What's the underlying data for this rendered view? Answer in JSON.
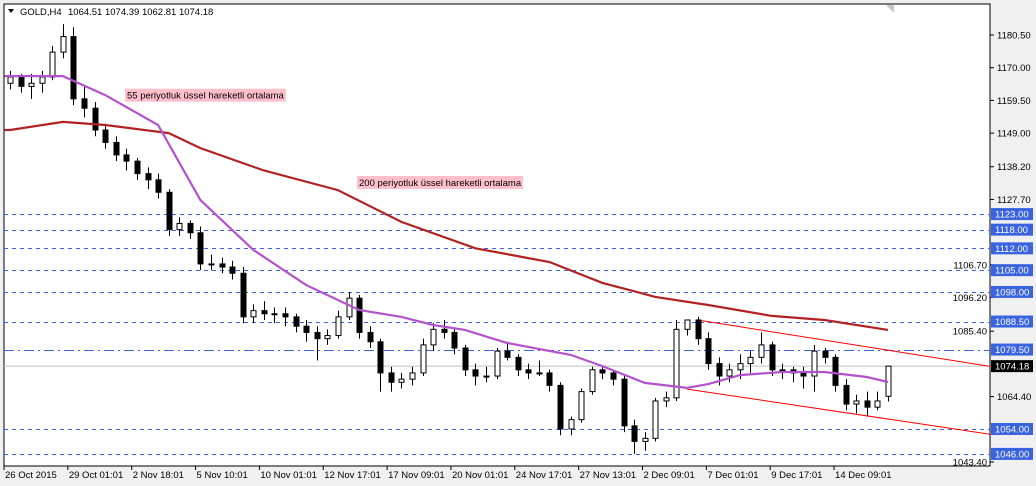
{
  "header": {
    "symbol": "GOLD,H4",
    "ohlc": "1064.51 1074.39 1062.81 1074.18",
    "menu_icon": "triangle-down-icon"
  },
  "colors": {
    "bull_bear": "#000000",
    "ma55": "#b452cd",
    "ma200": "#b22222",
    "levels": "#3a63e0",
    "channel": "#ff0000",
    "price_line": "#c0c0c0",
    "label_bg": "#ffc0cb"
  },
  "annotations": [
    {
      "text": "55 periyotluk üssel hareketli ortalama",
      "anchor_price": 1161
    },
    {
      "text": "200 periyotluk üssel hareketli ortalama",
      "anchor_price": 1133
    }
  ],
  "chart_data": {
    "type": "candlestick",
    "title": "GOLD,H4",
    "ylim": [
      1043.4,
      1180.5
    ],
    "y_ticks": [
      "1180.50",
      "1170.00",
      "1159.50",
      "1149.00",
      "1138.20",
      "1127.70",
      "1106.70",
      "1096.20",
      "1085.40",
      "1064.40",
      "1043.40"
    ],
    "x_ticks": [
      "26 Oct 2015",
      "29 Oct 01:01",
      "2 Nov 18:01",
      "5 Nov 10:01",
      "10 Nov 01:01",
      "12 Nov 17:01",
      "17 Nov 09:01",
      "20 Nov 01:01",
      "24 Nov 17:01",
      "27 Nov 13:01",
      "2 Dec 09:01",
      "7 Dec 01:01",
      "9 Dec 17:01",
      "14 Dec 09:01"
    ],
    "current_price": "1074.18",
    "ohlc": [
      [
        1165,
        1169,
        1163,
        1167
      ],
      [
        1167,
        1168,
        1162,
        1164
      ],
      [
        1164,
        1168,
        1160,
        1165
      ],
      [
        1165,
        1169,
        1162,
        1167
      ],
      [
        1167,
        1177,
        1166,
        1175
      ],
      [
        1175,
        1184,
        1173,
        1180
      ],
      [
        1180,
        1183,
        1158,
        1160
      ],
      [
        1160,
        1164,
        1154,
        1157
      ],
      [
        1157,
        1159,
        1148,
        1150
      ],
      [
        1150,
        1152,
        1144,
        1146
      ],
      [
        1146,
        1148,
        1140,
        1142
      ],
      [
        1142,
        1144,
        1137,
        1140
      ],
      [
        1140,
        1141,
        1134,
        1136
      ],
      [
        1136,
        1138,
        1131,
        1134
      ],
      [
        1134,
        1136,
        1128,
        1130
      ],
      [
        1130,
        1131,
        1116,
        1118
      ],
      [
        1118,
        1122,
        1116,
        1120
      ],
      [
        1120,
        1121,
        1115,
        1117
      ],
      [
        1117,
        1119,
        1105,
        1107
      ],
      [
        1107,
        1110,
        1105,
        1107
      ],
      [
        1107,
        1109,
        1104,
        1106
      ],
      [
        1106,
        1108,
        1102,
        1104
      ],
      [
        1104,
        1106,
        1088,
        1090
      ],
      [
        1090,
        1094,
        1088,
        1092
      ],
      [
        1092,
        1095,
        1089,
        1091
      ],
      [
        1091,
        1093,
        1088,
        1091
      ],
      [
        1091,
        1093,
        1087,
        1090
      ],
      [
        1090,
        1091,
        1085,
        1087
      ],
      [
        1087,
        1089,
        1082,
        1085
      ],
      [
        1085,
        1087,
        1076,
        1083
      ],
      [
        1083,
        1086,
        1081,
        1084
      ],
      [
        1084,
        1092,
        1083,
        1090
      ],
      [
        1090,
        1098,
        1089,
        1096
      ],
      [
        1096,
        1097,
        1083,
        1085
      ],
      [
        1085,
        1087,
        1080,
        1082
      ],
      [
        1082,
        1083,
        1066,
        1072
      ],
      [
        1072,
        1074,
        1066,
        1069
      ],
      [
        1069,
        1072,
        1067,
        1070
      ],
      [
        1070,
        1074,
        1068,
        1072
      ],
      [
        1072,
        1083,
        1071,
        1081
      ],
      [
        1081,
        1088,
        1079,
        1086
      ],
      [
        1086,
        1089,
        1083,
        1085
      ],
      [
        1085,
        1086,
        1078,
        1080
      ],
      [
        1080,
        1081,
        1071,
        1073
      ],
      [
        1073,
        1075,
        1068,
        1071
      ],
      [
        1071,
        1074,
        1069,
        1071
      ],
      [
        1071,
        1080,
        1070,
        1079
      ],
      [
        1079,
        1082,
        1076,
        1077
      ],
      [
        1077,
        1078,
        1071,
        1073
      ],
      [
        1073,
        1075,
        1070,
        1072
      ],
      [
        1072,
        1076,
        1071,
        1072
      ],
      [
        1072,
        1073,
        1066,
        1068
      ],
      [
        1068,
        1069,
        1052,
        1054
      ],
      [
        1054,
        1058,
        1052,
        1057
      ],
      [
        1057,
        1067,
        1056,
        1066
      ],
      [
        1066,
        1074,
        1065,
        1073
      ],
      [
        1073,
        1074,
        1070,
        1072
      ],
      [
        1072,
        1073,
        1068,
        1070
      ],
      [
        1070,
        1071,
        1053,
        1055
      ],
      [
        1055,
        1057,
        1046,
        1050
      ],
      [
        1050,
        1053,
        1047,
        1051
      ],
      [
        1051,
        1064,
        1050,
        1063
      ],
      [
        1063,
        1066,
        1061,
        1064
      ],
      [
        1064,
        1089,
        1063,
        1086
      ],
      [
        1086,
        1089,
        1084,
        1089
      ],
      [
        1089,
        1090,
        1081,
        1083
      ],
      [
        1083,
        1085,
        1073,
        1075
      ],
      [
        1075,
        1077,
        1068,
        1071
      ],
      [
        1071,
        1075,
        1069,
        1073
      ],
      [
        1073,
        1078,
        1070,
        1075
      ],
      [
        1075,
        1079,
        1072,
        1077
      ],
      [
        1077,
        1085,
        1075,
        1081
      ],
      [
        1081,
        1082,
        1071,
        1073
      ],
      [
        1073,
        1075,
        1070,
        1073
      ],
      [
        1073,
        1074,
        1069,
        1072
      ],
      [
        1072,
        1074,
        1067,
        1071
      ],
      [
        1071,
        1081,
        1066,
        1079
      ],
      [
        1079,
        1080,
        1075,
        1077
      ],
      [
        1077,
        1078,
        1066,
        1068
      ],
      [
        1068,
        1070,
        1060,
        1062
      ],
      [
        1062,
        1065,
        1059,
        1063
      ],
      [
        1063,
        1066,
        1058,
        1061
      ],
      [
        1061,
        1066,
        1060,
        1063
      ],
      [
        1064.51,
        1074.39,
        1062.81,
        1074.18
      ]
    ],
    "ma55": [
      [
        0,
        1167.3
      ],
      [
        5,
        1167.3
      ],
      [
        9,
        1161.2
      ],
      [
        14,
        1151.6
      ],
      [
        18,
        1127.5
      ],
      [
        23,
        1111.5
      ],
      [
        28,
        1100.2
      ],
      [
        33,
        1092.2
      ],
      [
        37,
        1090
      ],
      [
        40,
        1087.4
      ],
      [
        43,
        1085.8
      ],
      [
        47,
        1081.6
      ],
      [
        53,
        1077.8
      ],
      [
        56,
        1074.2
      ],
      [
        60,
        1068.8
      ],
      [
        64,
        1067.2
      ],
      [
        66,
        1068.4
      ],
      [
        69,
        1071.3
      ],
      [
        73,
        1072.3
      ],
      [
        77,
        1072.3
      ],
      [
        81,
        1070.7
      ],
      [
        83,
        1069.1
      ]
    ],
    "ma200": [
      [
        0,
        1150
      ],
      [
        5,
        1152.6
      ],
      [
        9,
        1151.6
      ],
      [
        15,
        1149
      ],
      [
        18,
        1144.2
      ],
      [
        24,
        1137
      ],
      [
        31,
        1130.7
      ],
      [
        37,
        1120.5
      ],
      [
        44,
        1112
      ],
      [
        51,
        1107.6
      ],
      [
        56,
        1100.9
      ],
      [
        61,
        1096.4
      ],
      [
        66,
        1093.8
      ],
      [
        72,
        1090.3
      ],
      [
        77,
        1089
      ],
      [
        83,
        1085.8
      ]
    ],
    "levels": [
      {
        "price": 1123.0,
        "label": "1123.00",
        "style": "dashed"
      },
      {
        "price": 1118.0,
        "label": "1118.00",
        "style": "dashed"
      },
      {
        "price": 1112.0,
        "label": "1112.00",
        "style": "dashed"
      },
      {
        "price": 1105.0,
        "label": "1105.00",
        "style": "dashed"
      },
      {
        "price": 1098.0,
        "label": "1098.00",
        "style": "dashed"
      },
      {
        "price": 1088.5,
        "label": "1088.50",
        "style": "dashed"
      },
      {
        "price": 1079.5,
        "label": "1079.50",
        "style": "dashdot"
      },
      {
        "price": 1054.0,
        "label": "1054.00",
        "style": "dashed"
      },
      {
        "price": 1046.0,
        "label": "1046.00",
        "style": "dashed"
      }
    ],
    "channel": [
      [
        [
          65,
          1089
        ],
        [
          83,
          1079.3
        ]
      ],
      [
        [
          64,
          1066.8
        ],
        [
          83,
          1057.2
        ]
      ]
    ]
  }
}
